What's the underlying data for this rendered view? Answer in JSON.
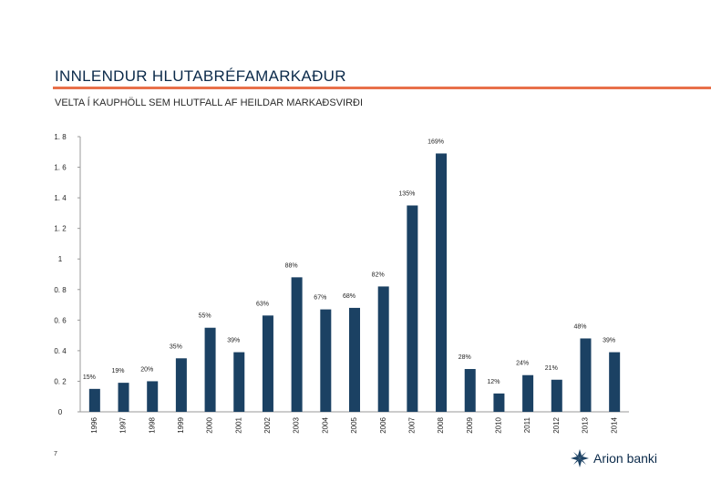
{
  "slide": {
    "title": "INNLENDUR HLUTABRÉFAMARKAÐUR",
    "subtitle": "VELTA Í KAUPHÖLL SEM HLUTFALL AF HEILDAR MARKAÐSVIRÐI",
    "page_number": "7",
    "logo_text": "Arion banki"
  },
  "colors": {
    "bar": "#1b4163",
    "title": "#0b2a4a",
    "accent_rule": "#e8704a",
    "gridline": "#cccccc"
  },
  "chart_data": {
    "type": "bar",
    "categories": [
      "1996",
      "1997",
      "1998",
      "1999",
      "2000",
      "2001",
      "2002",
      "2003",
      "2004",
      "2005",
      "2006",
      "2007",
      "2008",
      "2009",
      "2010",
      "2011",
      "2012",
      "2013",
      "2014"
    ],
    "values": [
      0.15,
      0.19,
      0.2,
      0.35,
      0.55,
      0.39,
      0.63,
      0.88,
      0.67,
      0.68,
      0.82,
      1.35,
      1.69,
      0.28,
      0.12,
      0.24,
      0.21,
      0.48,
      0.39
    ],
    "data_labels": [
      "15%",
      "19%",
      "20%",
      "35%",
      "55%",
      "39%",
      "63%",
      "88%",
      "67%",
      "68%",
      "82%",
      "135%",
      "169%",
      "28%",
      "12%",
      "24%",
      "21%",
      "48%",
      "39%"
    ],
    "yticks": [
      "0",
      "0. 2",
      "0. 4",
      "0. 6",
      "0. 8",
      "1",
      "1. 2",
      "1. 4",
      "1. 6",
      "1. 8"
    ],
    "ylim": [
      0,
      1.8
    ],
    "grid": false,
    "legend": "none"
  }
}
